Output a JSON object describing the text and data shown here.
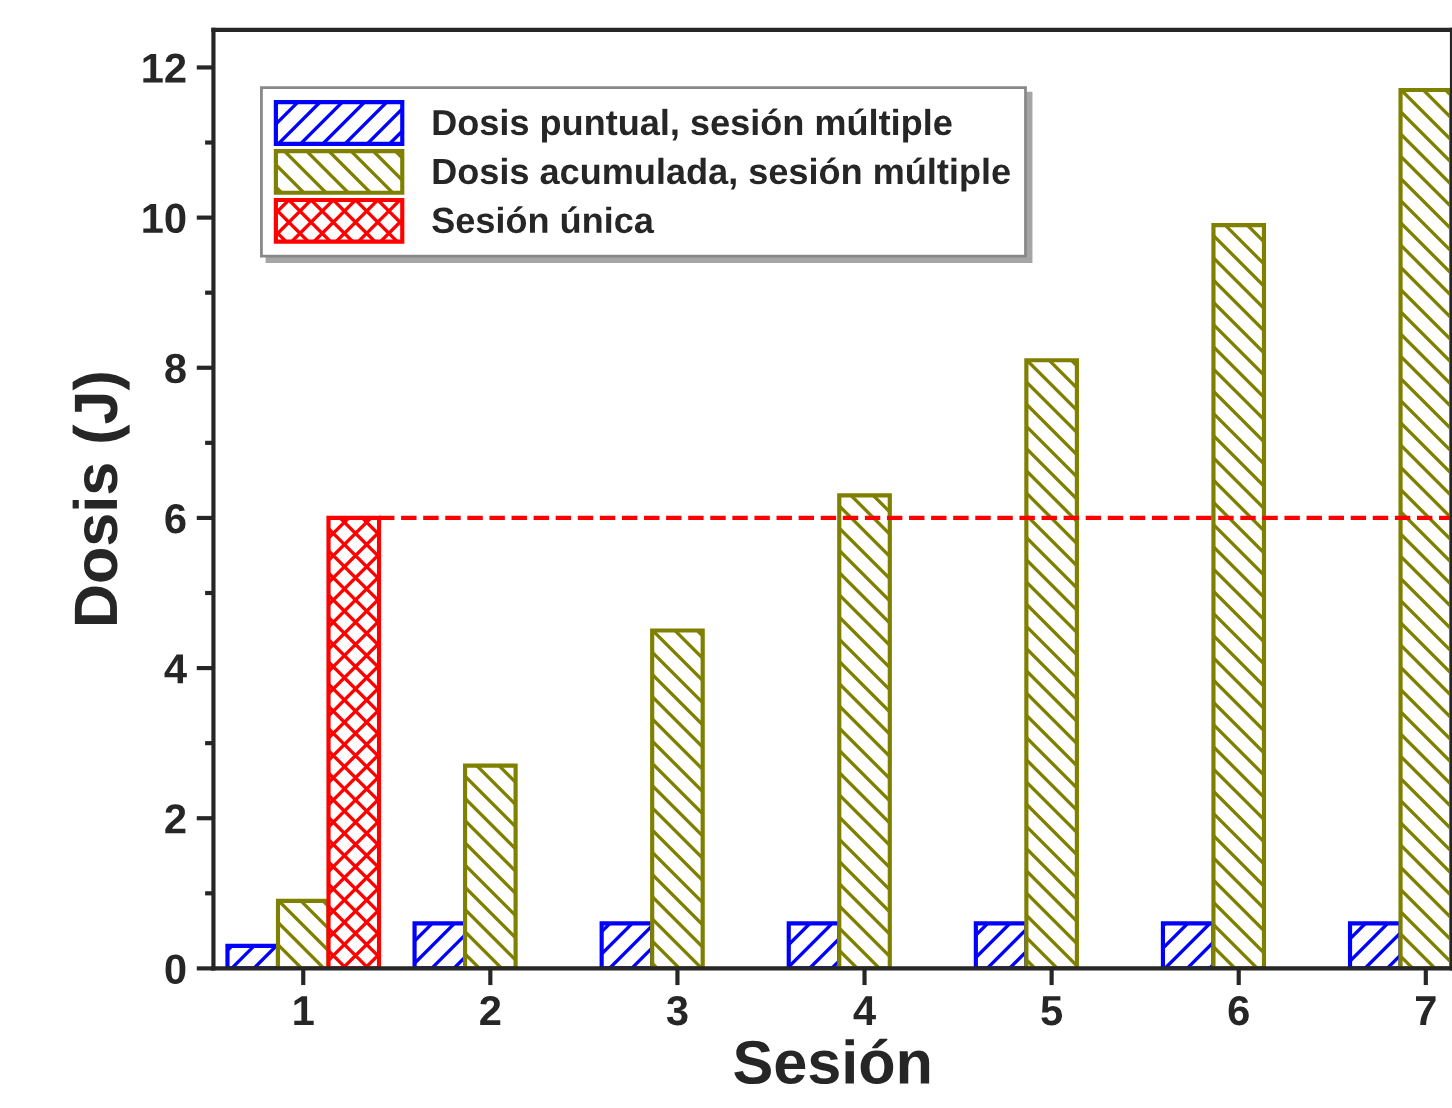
{
  "chart_data": {
    "type": "bar",
    "xlabel": "Sesión",
    "ylabel": "Dosis (J)",
    "categories": [
      "1",
      "2",
      "3",
      "4",
      "5",
      "6",
      "7"
    ],
    "series": [
      {
        "name": "Dosis puntual, sesión múltiple",
        "color": "#0000ff",
        "values": [
          0.3,
          0.6,
          0.6,
          0.6,
          0.6,
          0.6,
          0.6
        ]
      },
      {
        "name": "Dosis acumulada, sesión múltiple",
        "color": "#808000",
        "values": [
          0.9,
          2.7,
          4.5,
          6.3,
          8.1,
          9.9,
          11.7
        ]
      },
      {
        "name": "Sesión única",
        "color": "#ff0000",
        "values": [
          6,
          null,
          null,
          null,
          null,
          null,
          null
        ]
      }
    ],
    "ylim": [
      0,
      12.5
    ],
    "yticks": [
      0,
      2,
      4,
      6,
      8,
      10,
      12
    ],
    "ref_lines": [
      {
        "axis": "y",
        "value": 6,
        "color": "#ff0000",
        "line_style": "dashed"
      }
    ],
    "legend": "top left",
    "grid": false
  }
}
